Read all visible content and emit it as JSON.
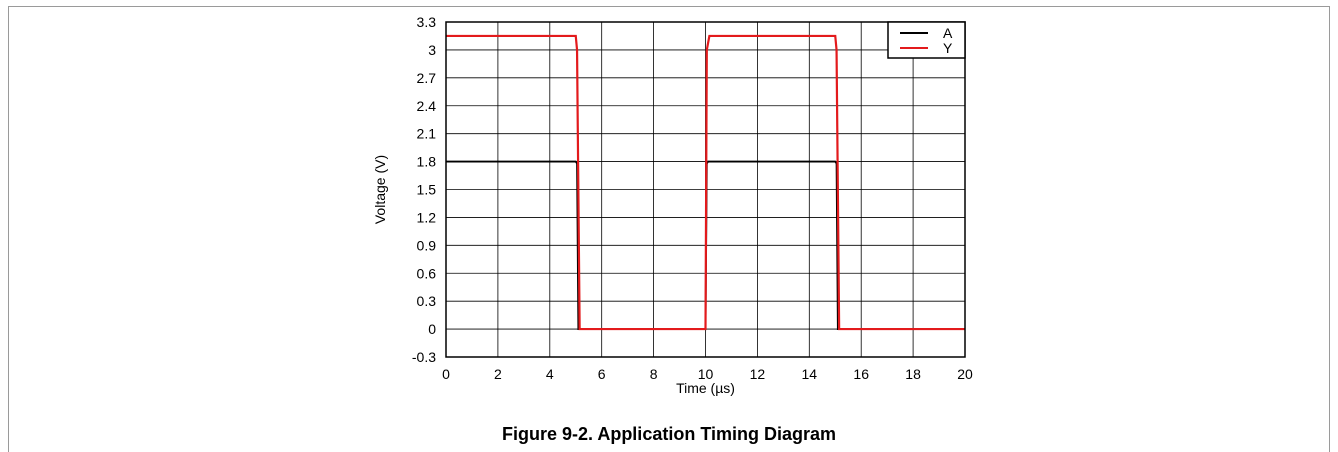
{
  "caption": "Figure 9-2. Application Timing Diagram",
  "chart_data": {
    "type": "line",
    "xlabel": "Time (µs)",
    "ylabel": "Voltage (V)",
    "xlim": [
      0,
      20
    ],
    "ylim": [
      -0.3,
      3.3
    ],
    "xticks": [
      0,
      2,
      4,
      6,
      8,
      10,
      12,
      14,
      16,
      18,
      20
    ],
    "yticks": [
      3.3,
      3,
      2.7,
      2.4,
      2.1,
      1.8,
      1.5,
      1.2,
      0.9,
      0.6,
      0.3,
      0,
      -0.3
    ],
    "grid": true,
    "legend_position": "top-right",
    "series": [
      {
        "name": "A",
        "color": "#000000",
        "points": [
          [
            0,
            1.8
          ],
          [
            5,
            1.8
          ],
          [
            5.05,
            1.78
          ],
          [
            5.1,
            0
          ],
          [
            10,
            0
          ],
          [
            10.05,
            1.78
          ],
          [
            10.1,
            1.8
          ],
          [
            15,
            1.8
          ],
          [
            15.05,
            1.78
          ],
          [
            15.1,
            0
          ],
          [
            20,
            0
          ]
        ]
      },
      {
        "name": "Y",
        "color": "#e31a1c",
        "points": [
          [
            0,
            3.15
          ],
          [
            5,
            3.15
          ],
          [
            5.05,
            3.0
          ],
          [
            5.15,
            0
          ],
          [
            10,
            0
          ],
          [
            10.05,
            3.0
          ],
          [
            10.15,
            3.15
          ],
          [
            15,
            3.15
          ],
          [
            15.05,
            3.0
          ],
          [
            15.15,
            0
          ],
          [
            20,
            0
          ]
        ]
      }
    ]
  }
}
